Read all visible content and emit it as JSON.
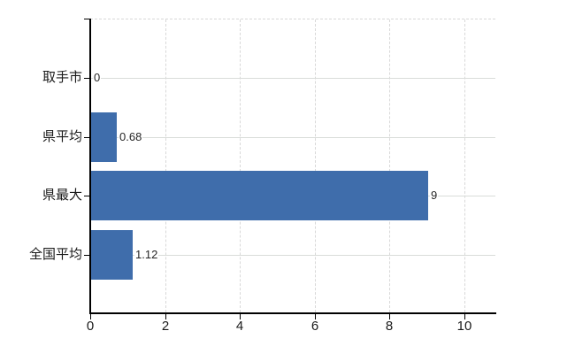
{
  "chart_data": {
    "type": "bar",
    "orientation": "horizontal",
    "title": "",
    "xlabel": "",
    "ylabel": "",
    "categories": [
      "取手市",
      "県平均",
      "県最大",
      "全国平均"
    ],
    "values": [
      0,
      0.68,
      9,
      1.12
    ],
    "value_labels": [
      "0",
      "0.68",
      "9",
      "1.12"
    ],
    "x_ticks": [
      0,
      2,
      4,
      6,
      8,
      10
    ],
    "xlim": [
      0,
      10.85
    ],
    "grid": true,
    "legend": false,
    "bar_color": "#3f6dab",
    "axis_color": "#000000",
    "grid_color": "#d9d9d9",
    "background_color": "#ffffff"
  }
}
